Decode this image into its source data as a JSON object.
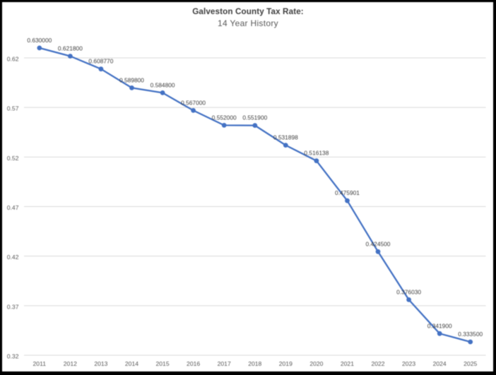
{
  "frame": {
    "border_color": "#000000",
    "background_color": "#ffffff"
  },
  "chart_data": {
    "type": "line",
    "title": "Galveston County Tax Rate:",
    "subtitle": "14 Year History",
    "categories": [
      "2011",
      "2012",
      "2013",
      "2014",
      "2015",
      "2016",
      "2017",
      "2018",
      "2019",
      "2020",
      "2021",
      "2022",
      "2023",
      "2024",
      "2025"
    ],
    "series": [
      {
        "name": "Tax Rate",
        "values": [
          0.63,
          0.6218,
          0.60877,
          0.5898,
          0.5848,
          0.567,
          0.552,
          0.5519,
          0.531898,
          0.516138,
          0.475901,
          0.4245,
          0.37603,
          0.3419,
          0.3335
        ],
        "data_labels": [
          "0.630000",
          "0.621800",
          "0.608770",
          "0.589800",
          "0.584800",
          "0.567000",
          "0.552000",
          "0.551900",
          "0.531898",
          "0.516138",
          "0.475901",
          "0.424500",
          "0.376030",
          "0.341900",
          "0.333500"
        ]
      }
    ],
    "xlabel": "",
    "ylabel": "",
    "y_ticks": [
      "0.32",
      "0.37",
      "0.42",
      "0.47",
      "0.52",
      "0.57",
      "0.62"
    ],
    "y_tick_values": [
      0.32,
      0.37,
      0.42,
      0.47,
      0.52,
      0.57,
      0.62
    ],
    "ylim": [
      0.32,
      0.65
    ],
    "grid": true,
    "legend": "none",
    "marker": "circle",
    "colors": {
      "line": "#4472c4",
      "marker": "#4472c4",
      "gridline": "#d9d9d9",
      "axis_text": "#595959",
      "data_label_text": "#404040",
      "title_text": "#404040",
      "subtitle_text": "#595959"
    }
  }
}
